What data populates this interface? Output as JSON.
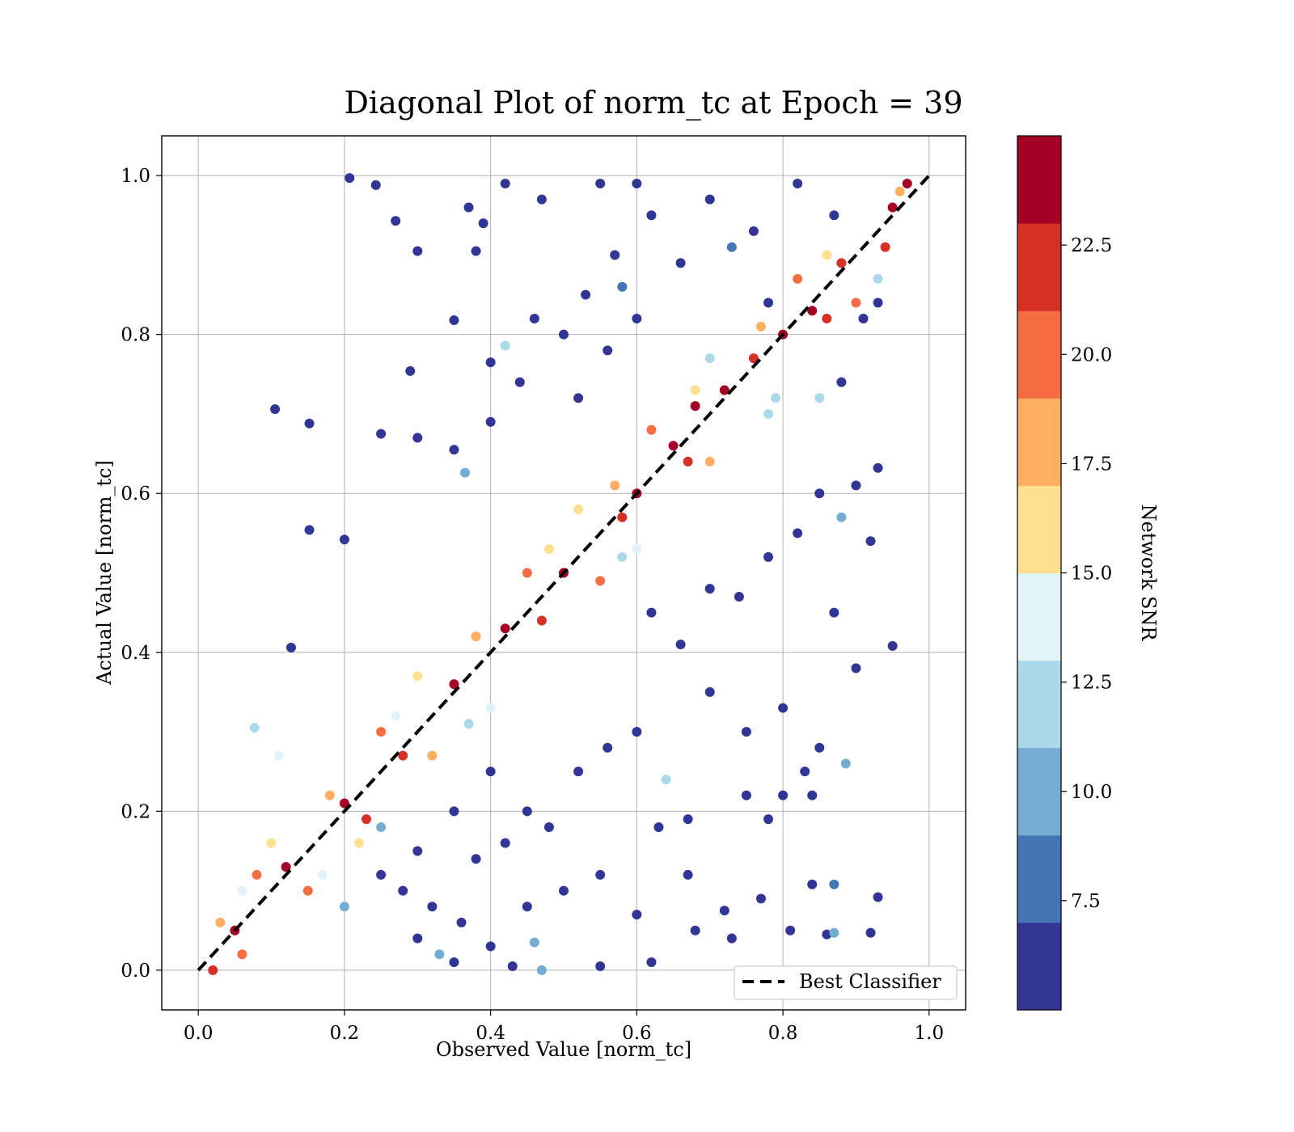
{
  "chart_data": {
    "type": "scatter",
    "title": "Diagonal Plot of norm_tc at Epoch = 39",
    "xlabel": "Observed Value [norm_tc]",
    "ylabel": "Actual Value [norm_tc]",
    "xlim": [
      -0.05,
      1.05
    ],
    "ylim": [
      -0.05,
      1.05
    ],
    "xticks": [
      0.0,
      0.2,
      0.4,
      0.6,
      0.8,
      1.0
    ],
    "yticks": [
      0.0,
      0.2,
      0.4,
      0.6,
      0.8,
      1.0
    ],
    "xtick_labels": [
      "0.0",
      "0.2",
      "0.4",
      "0.6",
      "0.8",
      "1.0"
    ],
    "ytick_labels": [
      "0.0",
      "0.2",
      "0.4",
      "0.6",
      "0.8",
      "1.0"
    ],
    "grid": true,
    "reference_line": {
      "label": "Best Classifier",
      "x": [
        0,
        1
      ],
      "y": [
        0,
        1
      ],
      "style": "dashed",
      "color": "#000000"
    },
    "legend_position": "lower-right",
    "colorbar": {
      "label": "Network SNR",
      "range": [
        5,
        25
      ],
      "ticks": [
        7.5,
        10.0,
        12.5,
        15.0,
        17.5,
        20.0,
        22.5
      ],
      "tick_labels": [
        "7.5",
        "10.0",
        "12.5",
        "15.0",
        "17.5",
        "20.0",
        "22.5"
      ],
      "colors": [
        "#313695",
        "#4575b4",
        "#74add1",
        "#abd9e9",
        "#e0f3f8",
        "#fee090",
        "#fdae61",
        "#f46d43",
        "#d73027",
        "#a50026"
      ]
    },
    "points": [
      [
        0.05,
        0.05,
        24
      ],
      [
        0.12,
        0.13,
        23
      ],
      [
        0.2,
        0.21,
        24
      ],
      [
        0.28,
        0.27,
        22
      ],
      [
        0.35,
        0.36,
        24
      ],
      [
        0.42,
        0.43,
        23
      ],
      [
        0.5,
        0.5,
        24
      ],
      [
        0.58,
        0.57,
        22
      ],
      [
        0.65,
        0.66,
        24
      ],
      [
        0.72,
        0.73,
        23
      ],
      [
        0.8,
        0.8,
        24
      ],
      [
        0.88,
        0.89,
        22
      ],
      [
        0.95,
        0.96,
        24
      ],
      [
        0.08,
        0.12,
        20
      ],
      [
        0.15,
        0.1,
        19
      ],
      [
        0.25,
        0.3,
        20
      ],
      [
        0.32,
        0.27,
        18
      ],
      [
        0.45,
        0.5,
        20
      ],
      [
        0.55,
        0.49,
        19
      ],
      [
        0.62,
        0.68,
        20
      ],
      [
        0.7,
        0.64,
        18
      ],
      [
        0.82,
        0.87,
        20
      ],
      [
        0.9,
        0.84,
        19
      ],
      [
        0.1,
        0.16,
        16
      ],
      [
        0.22,
        0.16,
        15
      ],
      [
        0.3,
        0.37,
        16
      ],
      [
        0.4,
        0.33,
        14
      ],
      [
        0.52,
        0.58,
        16
      ],
      [
        0.6,
        0.53,
        13
      ],
      [
        0.7,
        0.77,
        12
      ],
      [
        0.78,
        0.7,
        11
      ],
      [
        0.207,
        0.997,
        5
      ],
      [
        0.243,
        0.988,
        5
      ],
      [
        0.27,
        0.943,
        5
      ],
      [
        0.3,
        0.905,
        5
      ],
      [
        0.37,
        0.96,
        5
      ],
      [
        0.38,
        0.905,
        5
      ],
      [
        0.39,
        0.94,
        5
      ],
      [
        0.42,
        0.99,
        5
      ],
      [
        0.47,
        0.97,
        5
      ],
      [
        0.105,
        0.706,
        5
      ],
      [
        0.152,
        0.688,
        5
      ],
      [
        0.152,
        0.554,
        5
      ],
      [
        0.2,
        0.542,
        5
      ],
      [
        0.127,
        0.406,
        5
      ],
      [
        0.077,
        0.305,
        11
      ],
      [
        0.11,
        0.27,
        14
      ],
      [
        0.29,
        0.754,
        5
      ],
      [
        0.35,
        0.818,
        5
      ],
      [
        0.4,
        0.765,
        5
      ],
      [
        0.42,
        0.786,
        12
      ],
      [
        0.25,
        0.675,
        5
      ],
      [
        0.3,
        0.67,
        5
      ],
      [
        0.35,
        0.655,
        5
      ],
      [
        0.365,
        0.626,
        10
      ],
      [
        0.4,
        0.69,
        5
      ],
      [
        0.7,
        0.35,
        5
      ],
      [
        0.75,
        0.3,
        5
      ],
      [
        0.8,
        0.33,
        5
      ],
      [
        0.85,
        0.28,
        5
      ],
      [
        0.9,
        0.38,
        5
      ],
      [
        0.95,
        0.408,
        5
      ],
      [
        0.93,
        0.632,
        5
      ],
      [
        0.92,
        0.54,
        5
      ],
      [
        0.88,
        0.57,
        9
      ],
      [
        0.87,
        0.45,
        5
      ],
      [
        0.84,
        0.22,
        5
      ],
      [
        0.86,
        0.045,
        5
      ],
      [
        0.87,
        0.047,
        10
      ],
      [
        0.92,
        0.047,
        5
      ],
      [
        0.93,
        0.092,
        5
      ],
      [
        0.84,
        0.108,
        5
      ],
      [
        0.87,
        0.108,
        8
      ],
      [
        0.81,
        0.05,
        5
      ],
      [
        0.886,
        0.26,
        9
      ],
      [
        0.77,
        0.09,
        5
      ],
      [
        0.72,
        0.075,
        5
      ],
      [
        0.73,
        0.04,
        5
      ],
      [
        0.68,
        0.05,
        5
      ],
      [
        0.62,
        0.01,
        5
      ],
      [
        0.55,
        0.005,
        5
      ],
      [
        0.47,
        0.0,
        9
      ],
      [
        0.43,
        0.005,
        5
      ],
      [
        0.4,
        0.03,
        5
      ],
      [
        0.35,
        0.01,
        5
      ],
      [
        0.33,
        0.02,
        9
      ],
      [
        0.3,
        0.04,
        5
      ],
      [
        0.5,
        0.1,
        5
      ],
      [
        0.55,
        0.12,
        5
      ],
      [
        0.6,
        0.07,
        5
      ],
      [
        0.64,
        0.24,
        11
      ],
      [
        0.67,
        0.19,
        5
      ],
      [
        0.75,
        0.22,
        5
      ],
      [
        0.78,
        0.19,
        5
      ],
      [
        0.8,
        0.22,
        5
      ],
      [
        0.83,
        0.25,
        5
      ],
      [
        0.45,
        0.2,
        5
      ],
      [
        0.48,
        0.18,
        5
      ],
      [
        0.52,
        0.25,
        5
      ],
      [
        0.56,
        0.28,
        5
      ],
      [
        0.6,
        0.3,
        5
      ],
      [
        0.63,
        0.18,
        5
      ],
      [
        0.67,
        0.12,
        5
      ],
      [
        0.62,
        0.45,
        5
      ],
      [
        0.66,
        0.41,
        5
      ],
      [
        0.7,
        0.48,
        5
      ],
      [
        0.74,
        0.47,
        5
      ],
      [
        0.78,
        0.52,
        5
      ],
      [
        0.82,
        0.55,
        5
      ],
      [
        0.85,
        0.6,
        5
      ],
      [
        0.9,
        0.61,
        5
      ],
      [
        0.88,
        0.74,
        5
      ],
      [
        0.85,
        0.72,
        12
      ],
      [
        0.91,
        0.82,
        5
      ],
      [
        0.93,
        0.84,
        5
      ],
      [
        0.87,
        0.95,
        5
      ],
      [
        0.82,
        0.99,
        5
      ],
      [
        0.76,
        0.93,
        5
      ],
      [
        0.7,
        0.97,
        5
      ],
      [
        0.66,
        0.89,
        5
      ],
      [
        0.62,
        0.95,
        5
      ],
      [
        0.57,
        0.9,
        5
      ],
      [
        0.53,
        0.85,
        5
      ],
      [
        0.5,
        0.8,
        5
      ],
      [
        0.46,
        0.82,
        5
      ],
      [
        0.44,
        0.74,
        5
      ],
      [
        0.52,
        0.72,
        5
      ],
      [
        0.56,
        0.78,
        5
      ],
      [
        0.6,
        0.82,
        5
      ],
      [
        0.55,
        0.99,
        5
      ],
      [
        0.6,
        0.99,
        5
      ],
      [
        0.73,
        0.91,
        8
      ],
      [
        0.78,
        0.84,
        5
      ],
      [
        0.58,
        0.86,
        8
      ],
      [
        0.2,
        0.08,
        9
      ],
      [
        0.25,
        0.12,
        5
      ],
      [
        0.3,
        0.15,
        5
      ],
      [
        0.35,
        0.2,
        5
      ],
      [
        0.4,
        0.25,
        5
      ],
      [
        0.38,
        0.14,
        5
      ],
      [
        0.42,
        0.16,
        5
      ],
      [
        0.25,
        0.18,
        10
      ],
      [
        0.28,
        0.1,
        5
      ],
      [
        0.32,
        0.08,
        5
      ],
      [
        0.36,
        0.06,
        5
      ],
      [
        0.45,
        0.08,
        5
      ],
      [
        0.46,
        0.035,
        9
      ],
      [
        0.6,
        0.6,
        23
      ],
      [
        0.68,
        0.71,
        24
      ],
      [
        0.76,
        0.77,
        22
      ],
      [
        0.84,
        0.83,
        24
      ],
      [
        0.97,
        0.99,
        23
      ],
      [
        0.02,
        0.0,
        22
      ],
      [
        0.03,
        0.06,
        17
      ],
      [
        0.06,
        0.02,
        20
      ],
      [
        0.18,
        0.22,
        17
      ],
      [
        0.23,
        0.19,
        21
      ],
      [
        0.38,
        0.42,
        17
      ],
      [
        0.47,
        0.44,
        21
      ],
      [
        0.57,
        0.61,
        17
      ],
      [
        0.67,
        0.64,
        21
      ],
      [
        0.77,
        0.81,
        17
      ],
      [
        0.86,
        0.82,
        21
      ],
      [
        0.96,
        0.98,
        17
      ],
      [
        0.94,
        0.91,
        21
      ],
      [
        0.06,
        0.1,
        14
      ],
      [
        0.17,
        0.12,
        13
      ],
      [
        0.27,
        0.32,
        14
      ],
      [
        0.37,
        0.31,
        12
      ],
      [
        0.48,
        0.53,
        15
      ],
      [
        0.58,
        0.52,
        12
      ],
      [
        0.68,
        0.73,
        15
      ],
      [
        0.79,
        0.72,
        12
      ],
      [
        0.86,
        0.9,
        15
      ],
      [
        0.93,
        0.87,
        12
      ]
    ]
  }
}
